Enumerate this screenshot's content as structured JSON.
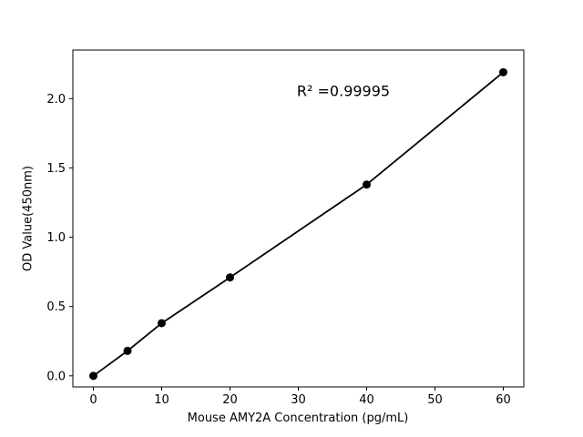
{
  "chart_data": {
    "type": "scatter",
    "title": "",
    "xlabel": "Mouse AMY2A Concentration (pg/mL)",
    "ylabel": "OD Value(450nm)",
    "x": [
      0,
      5,
      10,
      20,
      40,
      60
    ],
    "y": [
      0.0,
      0.18,
      0.38,
      0.71,
      1.38,
      2.19
    ],
    "fit_line_through_points": true,
    "annotation": {
      "text": "R² =0.99995",
      "fx": 0.6,
      "fy": 0.122
    },
    "xlim": [
      -3,
      63
    ],
    "ylim": [
      -0.08,
      2.35
    ],
    "xticks": {
      "values": [
        0,
        10,
        20,
        30,
        40,
        50,
        60
      ],
      "labels": [
        "0",
        "10",
        "20",
        "30",
        "40",
        "50",
        "60"
      ]
    },
    "yticks": {
      "values": [
        0.0,
        0.5,
        1.0,
        1.5,
        2.0
      ],
      "labels": [
        "0.0",
        "0.5",
        "1.0",
        "1.5",
        "2.0"
      ]
    },
    "grid": false,
    "legend": null,
    "colors": {
      "marker": "#000000",
      "line": "#000000",
      "frame": "#000000",
      "background": "#ffffff"
    }
  }
}
